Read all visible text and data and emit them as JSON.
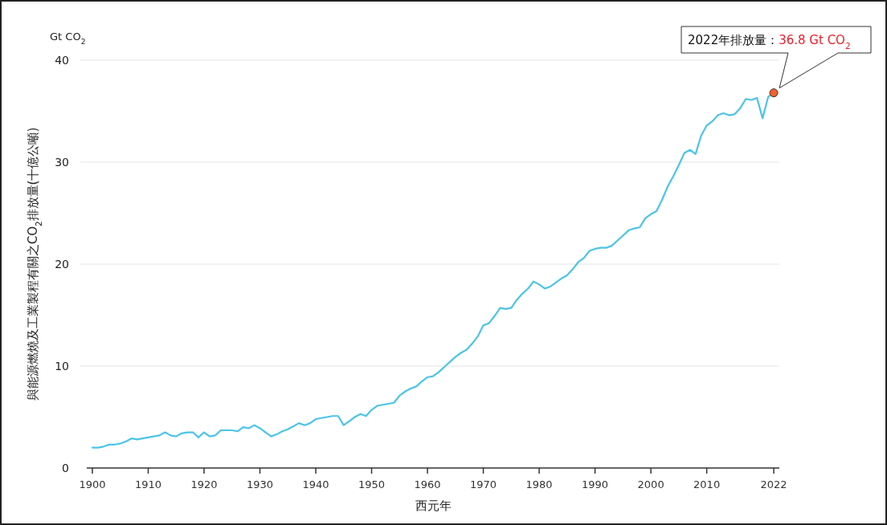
{
  "chart_data": {
    "type": "line",
    "xlabel": "西元年",
    "ylabel": "與能源燃燒及工業製程有關之CO$_{2}$排放量(十億公噸)",
    "xlim": [
      1899,
      2023
    ],
    "xticks": [
      1900,
      1910,
      1920,
      1930,
      1940,
      1950,
      1960,
      1970,
      1980,
      1990,
      2000,
      2010,
      2022
    ],
    "ylim": [
      0,
      40
    ],
    "yticks": [
      0,
      10,
      20,
      30,
      40
    ],
    "grid": "y",
    "annotations": [
      "Gt CO$_{2}$",
      "2022年排放量：36.8 Gt CO$_{2}$"
    ],
    "series": [
      {
        "color": "#4cc4e8",
        "x": [
          1900,
          1901,
          1902,
          1903,
          1904,
          1905,
          1906,
          1907,
          1908,
          1909,
          1910,
          1911,
          1912,
          1913,
          1914,
          1915,
          1916,
          1917,
          1918,
          1919,
          1920,
          1921,
          1922,
          1923,
          1924,
          1925,
          1926,
          1927,
          1928,
          1929,
          1930,
          1932,
          1933,
          1934,
          1935,
          1936,
          1937,
          1938,
          1939,
          1940,
          1941,
          1942,
          1943,
          1944,
          1945,
          1946,
          1947,
          1948,
          1949,
          1950,
          1951,
          1952,
          1953,
          1954,
          1955,
          1956,
          1957,
          1958,
          1959,
          1960,
          1961,
          1962,
          1963,
          1964,
          1965,
          1966,
          1967,
          1968,
          1969,
          1970,
          1971,
          1972,
          1973,
          1974,
          1975,
          1976,
          1977,
          1978,
          1979,
          1980,
          1981,
          1982,
          1983,
          1984,
          1985,
          1986,
          1987,
          1988,
          1989,
          1990,
          1991,
          1992,
          1993,
          1994,
          1995,
          1996,
          1997,
          1998,
          1999,
          2000,
          2001,
          2002,
          2003,
          2004,
          2005,
          2006,
          2007,
          2008,
          2009,
          2010,
          2011,
          2012,
          2013,
          2014,
          2015,
          2016,
          2017,
          2018,
          2019,
          2020,
          2021,
          2022
        ],
        "values": [
          2.0,
          2.0,
          2.1,
          2.3,
          2.3,
          2.4,
          2.6,
          2.9,
          2.8,
          2.9,
          3.0,
          3.1,
          3.2,
          3.5,
          3.2,
          3.1,
          3.4,
          3.5,
          3.5,
          3.0,
          3.5,
          3.1,
          3.2,
          3.7,
          3.7,
          3.7,
          3.6,
          4.0,
          3.9,
          4.2,
          3.9,
          3.1,
          3.3,
          3.6,
          3.8,
          4.1,
          4.4,
          4.2,
          4.4,
          4.8,
          4.9,
          5.0,
          5.1,
          5.1,
          4.2,
          4.6,
          5.0,
          5.3,
          5.1,
          5.7,
          6.1,
          6.2,
          6.3,
          6.4,
          7.1,
          7.5,
          7.8,
          8.0,
          8.5,
          8.9,
          9.0,
          9.4,
          9.9,
          10.4,
          10.9,
          11.3,
          11.6,
          12.2,
          12.9,
          14.0,
          14.2,
          14.9,
          15.7,
          15.6,
          15.7,
          16.5,
          17.1,
          17.6,
          18.3,
          18.0,
          17.6,
          17.8,
          18.2,
          18.6,
          18.9,
          19.5,
          20.2,
          20.6,
          21.3,
          21.5,
          21.6,
          21.6,
          21.8,
          22.3,
          22.8,
          23.3,
          23.5,
          23.6,
          24.5,
          24.9,
          25.2,
          26.3,
          27.6,
          28.6,
          29.7,
          30.9,
          31.2,
          30.8,
          32.6,
          33.6,
          34.0,
          34.6,
          34.8,
          34.6,
          34.7,
          35.3,
          36.2,
          36.1,
          36.3,
          34.3,
          36.4,
          36.8
        ]
      },
      {
        "type": "scatter",
        "color": "#f0622a",
        "x": [
          2022
        ],
        "values": [
          36.8
        ]
      }
    ]
  }
}
